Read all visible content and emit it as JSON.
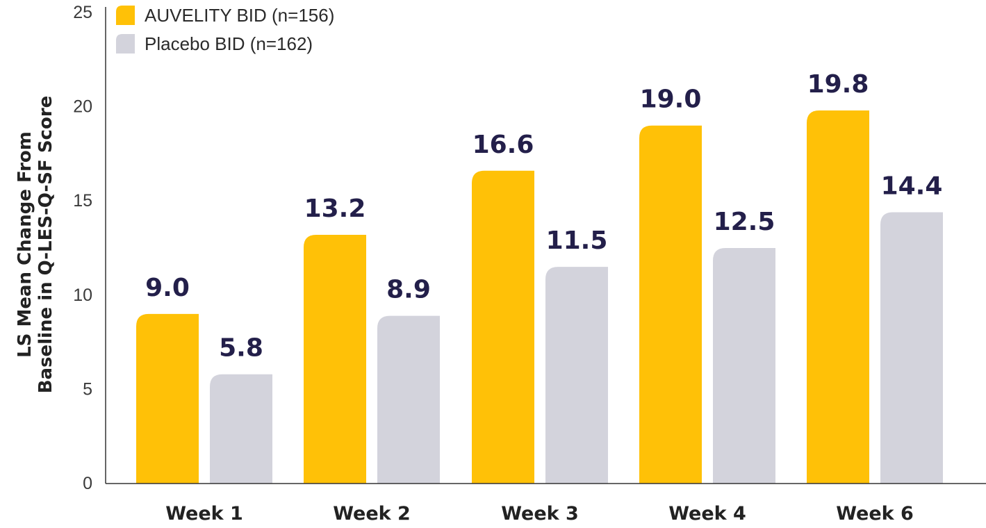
{
  "chart_data": {
    "type": "bar",
    "title": "",
    "xlabel": "",
    "ylabel_lines": [
      "LS Mean Change From",
      "Baseline in Q-LES-Q-SF Score"
    ],
    "ylim": [
      0,
      25
    ],
    "yticks": [
      0,
      5,
      10,
      15,
      20,
      25
    ],
    "grid": false,
    "legend_position": "top-left",
    "categories": [
      "Week 1",
      "Week 2",
      "Week 3",
      "Week 4",
      "Week 6"
    ],
    "series": [
      {
        "name": "AUVELITY BID (n=156)",
        "color": "#FFC107",
        "values": [
          9.0,
          13.2,
          16.6,
          19.0,
          19.8
        ],
        "labels": [
          "9.0",
          "13.2",
          "16.6",
          "19.0",
          "19.8"
        ]
      },
      {
        "name": "Placebo BID (n=162)",
        "color": "#D3D3DC",
        "values": [
          5.8,
          8.9,
          11.5,
          12.5,
          14.4
        ],
        "labels": [
          "5.8",
          "8.9",
          "11.5",
          "12.5",
          "14.4"
        ]
      }
    ]
  }
}
